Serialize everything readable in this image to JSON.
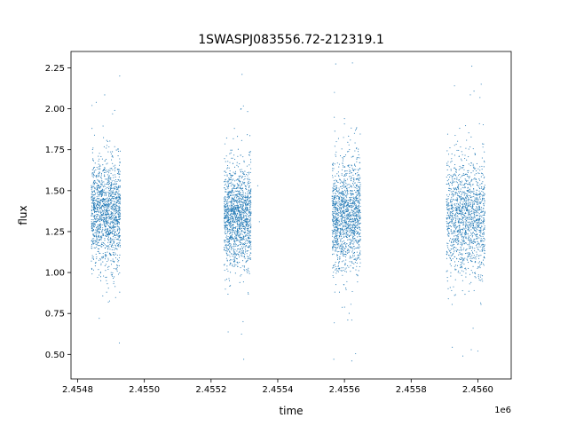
{
  "chart_data": {
    "type": "scatter",
    "title": "1SWASPJ083556.72-212319.1",
    "xlabel": "time",
    "ylabel": "flux",
    "x_offset_label": "1e6",
    "xlim": [
      2454780,
      2456100
    ],
    "ylim": [
      0.35,
      2.35
    ],
    "x_ticks": [
      2454800,
      2455000,
      2455200,
      2455400,
      2455600,
      2455800,
      2456000
    ],
    "x_tick_labels": [
      "2.4548",
      "2.4550",
      "2.4552",
      "2.4554",
      "2.4556",
      "2.4558",
      "2.4560"
    ],
    "y_ticks": [
      0.5,
      0.75,
      1.0,
      1.25,
      1.5,
      1.75,
      2.0,
      2.25
    ],
    "y_tick_labels": [
      "0.50",
      "0.75",
      "1.00",
      "1.25",
      "1.50",
      "1.75",
      "2.00",
      "2.25"
    ],
    "grid": false,
    "marker_color": "#1f77b4",
    "clusters": [
      {
        "x_range": [
          2454841,
          2454928
        ],
        "y_center": 1.36,
        "y_spread": 0.16,
        "y_min": 0.56,
        "y_max": 2.23
      },
      {
        "x_range": [
          2455239,
          2455320
        ],
        "y_center": 1.34,
        "y_spread": 0.15,
        "y_min": 0.46,
        "y_max": 2.22
      },
      {
        "x_range": [
          2455563,
          2455648
        ],
        "y_center": 1.35,
        "y_spread": 0.16,
        "y_min": 0.45,
        "y_max": 2.28
      },
      {
        "x_range": [
          2455906,
          2456021
        ],
        "y_center": 1.34,
        "y_spread": 0.17,
        "y_min": 0.48,
        "y_max": 2.26
      }
    ],
    "points": [
      [
        2454845,
        1.36
      ],
      [
        2454852,
        1.18
      ],
      [
        2454858,
        1.52
      ],
      [
        2454866,
        1.29
      ],
      [
        2454873,
        1.44
      ],
      [
        2454880,
        1.61
      ],
      [
        2454887,
        1.22
      ],
      [
        2454894,
        1.38
      ],
      [
        2454901,
        1.05
      ],
      [
        2454908,
        1.49
      ],
      [
        2454915,
        1.31
      ],
      [
        2454921,
        1.75
      ],
      [
        2454926,
        0.88
      ],
      [
        2454926,
        2.2
      ],
      [
        2454925,
        0.57
      ],
      [
        2454848,
        1.08
      ],
      [
        2454862,
        1.71
      ],
      [
        2454890,
        1.8
      ],
      [
        2454911,
        1.99
      ],
      [
        2454843,
        2.02
      ],
      [
        2455242,
        1.33
      ],
      [
        2455250,
        1.48
      ],
      [
        2455257,
        1.21
      ],
      [
        2455265,
        1.39
      ],
      [
        2455272,
        1.12
      ],
      [
        2455280,
        1.57
      ],
      [
        2455287,
        1.27
      ],
      [
        2455294,
        1.43
      ],
      [
        2455301,
        1.18
      ],
      [
        2455308,
        1.65
      ],
      [
        2455315,
        1.35
      ],
      [
        2455290,
        2.0
      ],
      [
        2455296,
        0.7
      ],
      [
        2455298,
        0.47
      ],
      [
        2455293,
        2.21
      ],
      [
        2455340,
        1.53
      ],
      [
        2455345,
        1.31
      ],
      [
        2455318,
        1.74
      ],
      [
        2455255,
        0.95
      ],
      [
        2455270,
        1.88
      ],
      [
        2455566,
        1.41
      ],
      [
        2455574,
        1.22
      ],
      [
        2455581,
        1.55
      ],
      [
        2455589,
        1.3
      ],
      [
        2455596,
        1.47
      ],
      [
        2455604,
        1.16
      ],
      [
        2455611,
        1.38
      ],
      [
        2455618,
        1.62
      ],
      [
        2455626,
        1.25
      ],
      [
        2455633,
        1.44
      ],
      [
        2455640,
        1.09
      ],
      [
        2455645,
        1.7
      ],
      [
        2455568,
        0.47
      ],
      [
        2455570,
        2.1
      ],
      [
        2455624,
        2.28
      ],
      [
        2455622,
        0.46
      ],
      [
        2455610,
        0.71
      ],
      [
        2455600,
        1.94
      ],
      [
        2455585,
        0.88
      ],
      [
        2455630,
        1.85
      ],
      [
        2455908,
        1.33
      ],
      [
        2455916,
        1.5
      ],
      [
        2455924,
        1.2
      ],
      [
        2455932,
        1.41
      ],
      [
        2455940,
        1.14
      ],
      [
        2455948,
        1.58
      ],
      [
        2455956,
        1.29
      ],
      [
        2455964,
        1.46
      ],
      [
        2455972,
        1.11
      ],
      [
        2455980,
        1.67
      ],
      [
        2455988,
        1.36
      ],
      [
        2455996,
        1.23
      ],
      [
        2456004,
        1.52
      ],
      [
        2456012,
        1.3
      ],
      [
        2456018,
        1.45
      ],
      [
        2455930,
        2.14
      ],
      [
        2455955,
        0.49
      ],
      [
        2455982,
        2.26
      ],
      [
        2456010,
        2.15
      ],
      [
        2456000,
        0.52
      ]
    ]
  }
}
